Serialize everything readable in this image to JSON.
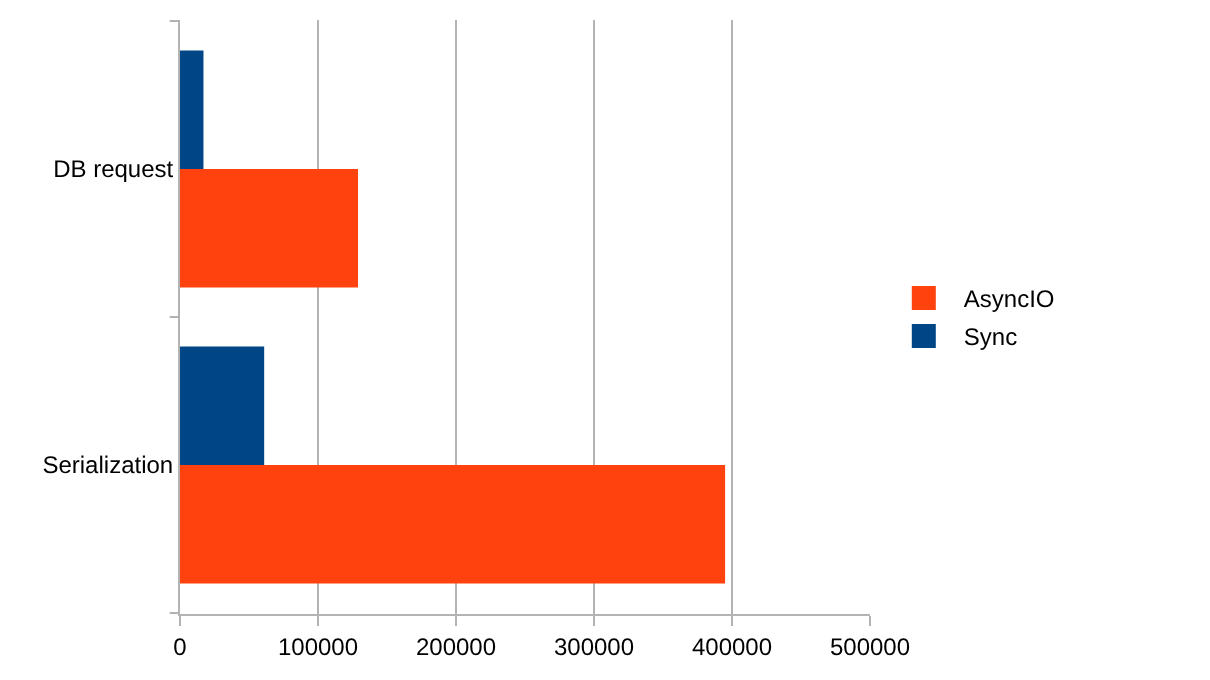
{
  "chart_data": {
    "type": "bar",
    "orientation": "horizontal",
    "categories": [
      "DB request",
      "Serialization"
    ],
    "series": [
      {
        "name": "AsyncIO",
        "color": "#ff420e",
        "values": [
          129000,
          395000
        ]
      },
      {
        "name": "Sync",
        "color": "#004586",
        "values": [
          17000,
          61000
        ]
      }
    ],
    "xlim": [
      0,
      500000
    ],
    "xticks": [
      0,
      100000,
      200000,
      300000,
      400000,
      500000
    ],
    "grid": "x",
    "legend": "right"
  }
}
